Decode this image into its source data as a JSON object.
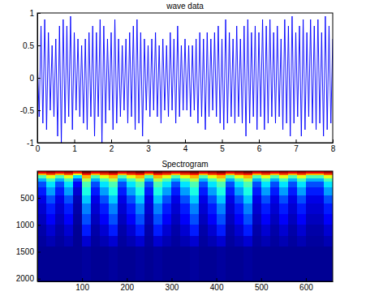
{
  "chart_data": [
    {
      "type": "line",
      "title": "wave data",
      "color": "#0000ff",
      "x": [
        0,
        0.05,
        0.1,
        0.15,
        0.2,
        0.25,
        0.3,
        0.35,
        0.4,
        0.45,
        0.5,
        0.55,
        0.6,
        0.65,
        0.7,
        0.75,
        0.8,
        0.85,
        0.9,
        0.95,
        1,
        1.05,
        1.1,
        1.15,
        1.2,
        1.25,
        1.3,
        1.35,
        1.4,
        1.45,
        1.5,
        1.55,
        1.6,
        1.65,
        1.7,
        1.75,
        1.8,
        1.85,
        1.9,
        1.95,
        2,
        2.05,
        2.1,
        2.15,
        2.2,
        2.25,
        2.3,
        2.35,
        2.4,
        2.45,
        2.5,
        2.55,
        2.6,
        2.65,
        2.7,
        2.75,
        2.8,
        2.85,
        2.9,
        2.95,
        3,
        3.05,
        3.1,
        3.15,
        3.2,
        3.25,
        3.3,
        3.35,
        3.4,
        3.45,
        3.5,
        3.55,
        3.6,
        3.65,
        3.7,
        3.75,
        3.8,
        3.85,
        3.9,
        3.95,
        4,
        4.05,
        4.1,
        4.15,
        4.2,
        4.25,
        4.3,
        4.35,
        4.4,
        4.45,
        4.5,
        4.55,
        4.6,
        4.65,
        4.7,
        4.75,
        4.8,
        4.85,
        4.9,
        4.95,
        5,
        5.05,
        5.1,
        5.15,
        5.2,
        5.25,
        5.3,
        5.35,
        5.4,
        5.45,
        5.5,
        5.55,
        5.6,
        5.65,
        5.7,
        5.75,
        5.8,
        5.85,
        5.9,
        5.95,
        6,
        6.05,
        6.1,
        6.15,
        6.2,
        6.25,
        6.3,
        6.35,
        6.4,
        6.45,
        6.5,
        6.55,
        6.6,
        6.65,
        6.7,
        6.75,
        6.8,
        6.85,
        6.9,
        6.95,
        7,
        7.05,
        7.1,
        7.15,
        7.2,
        7.25,
        7.3,
        7.35,
        7.4,
        7.45,
        7.5,
        7.55,
        7.6,
        7.65,
        7.7,
        7.75,
        7.8,
        7.85,
        7.9,
        7.95,
        8
      ],
      "values": [
        0.3,
        -0.6,
        0.8,
        -0.7,
        0.9,
        -0.8,
        0.7,
        -0.5,
        0.5,
        -0.6,
        0.6,
        -0.9,
        0.8,
        -1,
        0.9,
        -0.7,
        0.8,
        -0.6,
        0.95,
        -0.8,
        0.7,
        -0.5,
        0.6,
        -0.6,
        0.5,
        -0.7,
        0.6,
        -0.8,
        0.7,
        -0.6,
        0.8,
        -0.9,
        0.7,
        -0.6,
        0.9,
        -1,
        0.8,
        -0.7,
        0.6,
        -0.5,
        0.7,
        -0.8,
        0.9,
        -0.7,
        0.6,
        -0.6,
        0.5,
        -0.5,
        0.6,
        -0.7,
        0.7,
        -0.6,
        0.8,
        -0.8,
        0.9,
        -0.7,
        0.7,
        -0.9,
        0.6,
        -0.5,
        0.5,
        -0.6,
        0.6,
        -0.5,
        0.7,
        -0.6,
        0.5,
        -0.7,
        0.6,
        -0.5,
        0.5,
        -0.6,
        0.7,
        -0.5,
        0.6,
        -0.7,
        0.8,
        -0.6,
        0.5,
        -0.5,
        0.6,
        -0.5,
        0.5,
        -0.6,
        0.5,
        -0.5,
        0.6,
        -0.7,
        0.7,
        -0.6,
        0.6,
        -0.8,
        0.7,
        -0.6,
        0.6,
        -0.5,
        0.7,
        -0.6,
        0.8,
        -0.7,
        0.6,
        -0.8,
        0.9,
        -0.7,
        0.7,
        -0.6,
        0.6,
        -0.7,
        0.8,
        -0.6,
        0.6,
        -0.7,
        0.8,
        -0.9,
        0.9,
        -0.7,
        0.7,
        -0.6,
        0.8,
        -0.8,
        0.7,
        -0.6,
        0.9,
        -0.8,
        0.8,
        -0.7,
        0.9,
        -0.6,
        0.7,
        -0.7,
        0.8,
        -0.6,
        0.6,
        -0.8,
        0.9,
        -0.7,
        0.8,
        -0.9,
        0.95,
        -0.7,
        0.7,
        -0.6,
        0.8,
        -0.9,
        0.9,
        -0.8,
        0.7,
        -0.6,
        0.9,
        -0.7,
        0.8,
        -0.8,
        0.9,
        -0.7,
        0.7,
        -0.9,
        0.95,
        -0.8,
        0.8,
        -0.7,
        0.6
      ],
      "xlim": [
        0,
        8
      ],
      "xticks": [
        0,
        1,
        2,
        3,
        4,
        5,
        6,
        7,
        8
      ],
      "ylim": [
        -1,
        1
      ],
      "yticks": [
        -1,
        -0.5,
        0,
        0.5,
        1
      ]
    },
    {
      "type": "heatmap",
      "title": "Spectrogram",
      "x_edges": [
        0,
        20,
        40,
        60,
        80,
        100,
        120,
        140,
        160,
        180,
        200,
        220,
        240,
        260,
        280,
        300,
        320,
        340,
        360,
        380,
        400,
        420,
        440,
        460,
        480,
        500,
        520,
        540,
        560,
        580,
        600,
        620,
        640,
        660
      ],
      "y_edges": [
        0,
        40,
        80,
        130,
        200,
        300,
        450,
        600,
        800,
        1000,
        1200,
        1400,
        2050
      ],
      "cells": [
        [
          0.9,
          0.95,
          0.9,
          0.95,
          0.85,
          1,
          0.9,
          0.95,
          1,
          0.9,
          0.95,
          1,
          0.9,
          1,
          0.95,
          0.9,
          0.95,
          1,
          0.9,
          0.95,
          1,
          0.9,
          0.95,
          1,
          0.9,
          0.95,
          0.9,
          0.95,
          0.9,
          0.95,
          0.9,
          0.9,
          0.95
        ],
        [
          0.7,
          0.8,
          0.7,
          0.8,
          0.6,
          0.85,
          0.7,
          0.8,
          0.85,
          0.7,
          0.8,
          0.85,
          0.7,
          0.85,
          0.8,
          0.7,
          0.8,
          0.85,
          0.7,
          0.8,
          0.85,
          0.7,
          0.8,
          0.85,
          0.7,
          0.8,
          0.7,
          0.8,
          0.7,
          0.8,
          0.7,
          0.7,
          0.8
        ],
        [
          0.45,
          0.6,
          0.45,
          0.6,
          0.35,
          0.7,
          0.45,
          0.6,
          0.7,
          0.45,
          0.6,
          0.7,
          0.45,
          0.7,
          0.6,
          0.45,
          0.6,
          0.7,
          0.45,
          0.6,
          0.7,
          0.45,
          0.6,
          0.7,
          0.45,
          0.6,
          0.45,
          0.6,
          0.45,
          0.6,
          0.45,
          0.45,
          0.6
        ],
        [
          0.3,
          0.45,
          0.3,
          0.45,
          0.2,
          0.55,
          0.3,
          0.45,
          0.55,
          0.3,
          0.45,
          0.55,
          0.3,
          0.55,
          0.45,
          0.3,
          0.45,
          0.55,
          0.3,
          0.45,
          0.55,
          0.3,
          0.45,
          0.55,
          0.3,
          0.45,
          0.3,
          0.45,
          0.3,
          0.45,
          0.3,
          0.3,
          0.45
        ],
        [
          0.2,
          0.35,
          0.2,
          0.35,
          0.12,
          0.45,
          0.2,
          0.35,
          0.45,
          0.2,
          0.35,
          0.45,
          0.2,
          0.45,
          0.35,
          0.2,
          0.35,
          0.45,
          0.2,
          0.35,
          0.45,
          0.2,
          0.35,
          0.45,
          0.2,
          0.35,
          0.2,
          0.35,
          0.2,
          0.35,
          0.2,
          0.2,
          0.35
        ],
        [
          0.15,
          0.28,
          0.15,
          0.28,
          0.08,
          0.4,
          0.15,
          0.28,
          0.4,
          0.15,
          0.28,
          0.4,
          0.15,
          0.4,
          0.28,
          0.15,
          0.28,
          0.4,
          0.15,
          0.28,
          0.4,
          0.15,
          0.28,
          0.4,
          0.15,
          0.28,
          0.15,
          0.28,
          0.15,
          0.28,
          0.15,
          0.15,
          0.28
        ],
        [
          0.1,
          0.2,
          0.1,
          0.2,
          0.05,
          0.32,
          0.1,
          0.2,
          0.32,
          0.1,
          0.2,
          0.32,
          0.1,
          0.32,
          0.2,
          0.1,
          0.2,
          0.32,
          0.1,
          0.2,
          0.32,
          0.1,
          0.2,
          0.32,
          0.1,
          0.2,
          0.1,
          0.2,
          0.1,
          0.2,
          0.1,
          0.1,
          0.2
        ],
        [
          0.08,
          0.15,
          0.08,
          0.15,
          0.04,
          0.25,
          0.08,
          0.15,
          0.25,
          0.08,
          0.15,
          0.25,
          0.08,
          0.25,
          0.15,
          0.08,
          0.15,
          0.25,
          0.08,
          0.15,
          0.25,
          0.08,
          0.15,
          0.25,
          0.08,
          0.15,
          0.08,
          0.15,
          0.08,
          0.15,
          0.08,
          0.08,
          0.15
        ],
        [
          0.06,
          0.12,
          0.06,
          0.12,
          0.03,
          0.2,
          0.06,
          0.12,
          0.2,
          0.06,
          0.12,
          0.2,
          0.06,
          0.2,
          0.12,
          0.06,
          0.12,
          0.2,
          0.06,
          0.12,
          0.2,
          0.06,
          0.12,
          0.2,
          0.06,
          0.12,
          0.06,
          0.12,
          0.06,
          0.12,
          0.06,
          0.06,
          0.12
        ],
        [
          0.04,
          0.08,
          0.04,
          0.08,
          0.02,
          0.15,
          0.04,
          0.08,
          0.15,
          0.04,
          0.08,
          0.15,
          0.04,
          0.15,
          0.08,
          0.04,
          0.08,
          0.15,
          0.04,
          0.08,
          0.15,
          0.04,
          0.08,
          0.15,
          0.04,
          0.08,
          0.04,
          0.08,
          0.04,
          0.08,
          0.04,
          0.04,
          0.08
        ],
        [
          0.03,
          0.05,
          0.03,
          0.05,
          0.02,
          0.08,
          0.03,
          0.05,
          0.08,
          0.03,
          0.05,
          0.08,
          0.03,
          0.08,
          0.05,
          0.03,
          0.05,
          0.08,
          0.03,
          0.05,
          0.08,
          0.03,
          0.05,
          0.08,
          0.03,
          0.05,
          0.03,
          0.05,
          0.03,
          0.05,
          0.03,
          0.03,
          0.05
        ],
        [
          0.02,
          0.02,
          0.02,
          0.02,
          0.02,
          0.03,
          0.02,
          0.02,
          0.03,
          0.02,
          0.02,
          0.03,
          0.02,
          0.03,
          0.02,
          0.02,
          0.02,
          0.03,
          0.02,
          0.02,
          0.03,
          0.02,
          0.02,
          0.03,
          0.02,
          0.02,
          0.02,
          0.02,
          0.02,
          0.02,
          0.02,
          0.02,
          0.02
        ]
      ],
      "clim": [
        0,
        1
      ],
      "xlim": [
        0,
        660
      ],
      "xticks": [
        100,
        200,
        300,
        400,
        500,
        600
      ],
      "ylim": [
        0,
        2050
      ],
      "yticks": [
        500,
        1000,
        1500,
        2000
      ]
    }
  ]
}
